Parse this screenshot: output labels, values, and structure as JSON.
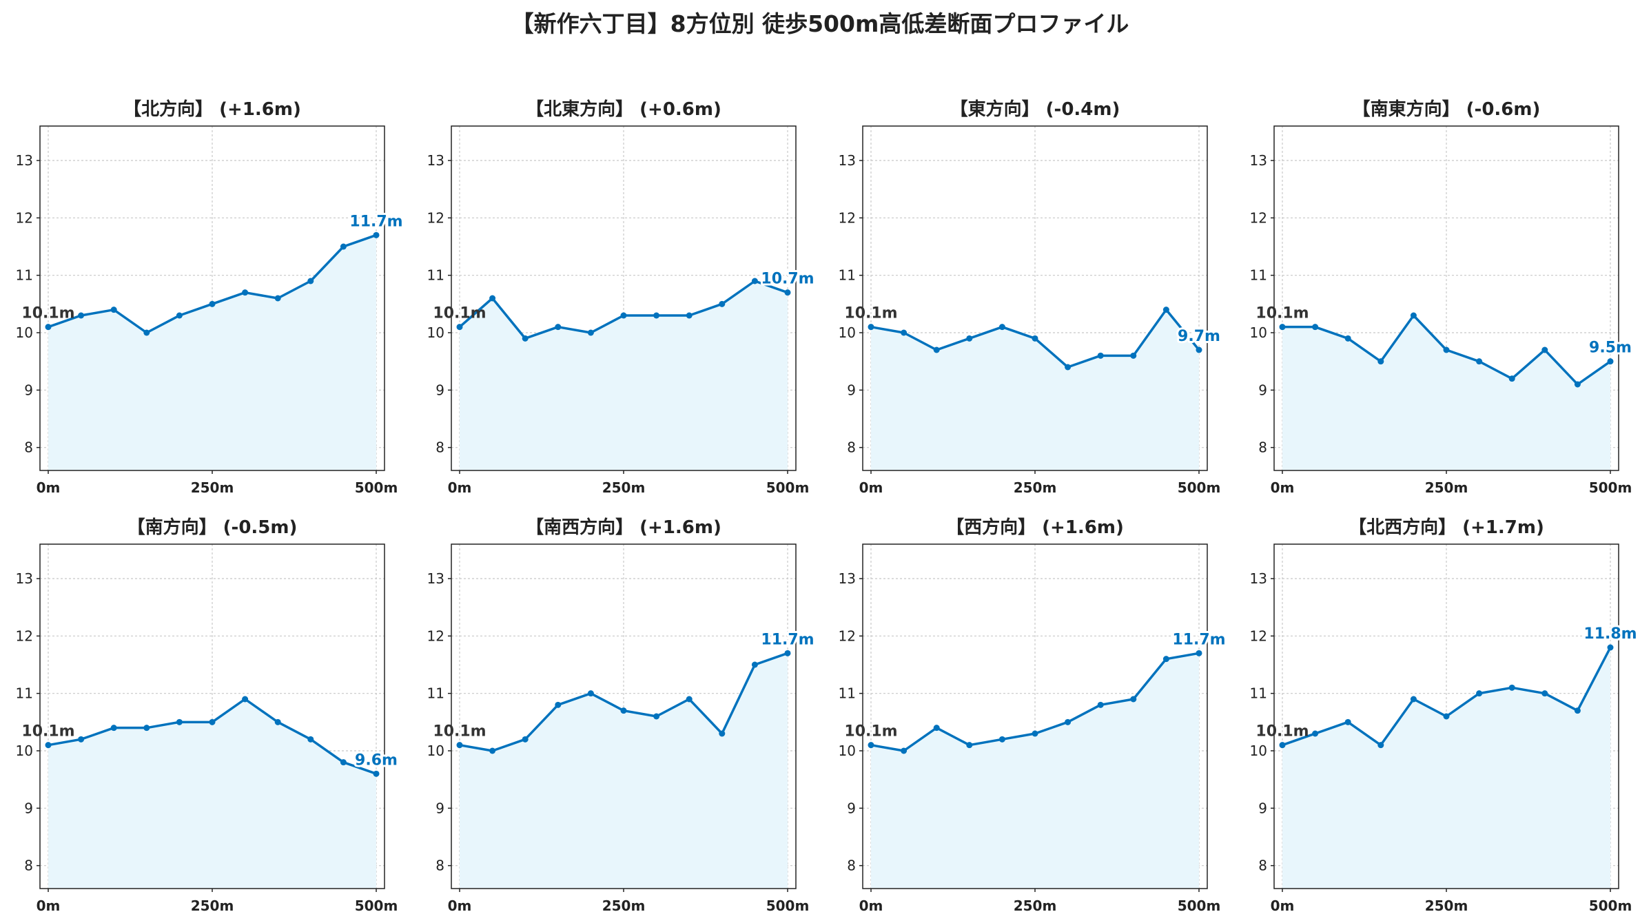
{
  "title": "【新作六丁目】8方位別 徒歩500m高低差断面プロファイル",
  "colors": {
    "line": "#0072bd",
    "fill": "#e8f6fc",
    "grid": "#c8c8c8",
    "axis": "#222222",
    "start_label": "#333333"
  },
  "chart_data": [
    {
      "type": "line",
      "title": "【北方向】 (+1.6m)",
      "x": [
        0,
        50,
        100,
        150,
        200,
        250,
        300,
        350,
        400,
        450,
        500
      ],
      "y": [
        10.1,
        10.3,
        10.4,
        10.0,
        10.3,
        10.5,
        10.7,
        10.6,
        10.9,
        11.5,
        11.7
      ],
      "start_label": "10.1m",
      "end_label": "11.7m",
      "xlim": [
        0,
        500
      ],
      "ylim": [
        7.6,
        13.6
      ],
      "xticks": [
        "0m",
        "250m",
        "500m"
      ],
      "yticks": [
        8,
        9,
        10,
        11,
        12,
        13
      ],
      "grid": true
    },
    {
      "type": "line",
      "title": "【北東方向】 (+0.6m)",
      "x": [
        0,
        50,
        100,
        150,
        200,
        250,
        300,
        350,
        400,
        450,
        500
      ],
      "y": [
        10.1,
        10.6,
        9.9,
        10.1,
        10.0,
        10.3,
        10.3,
        10.3,
        10.5,
        10.9,
        10.7
      ],
      "start_label": "10.1m",
      "end_label": "10.7m",
      "xlim": [
        0,
        500
      ],
      "ylim": [
        7.6,
        13.6
      ],
      "xticks": [
        "0m",
        "250m",
        "500m"
      ],
      "yticks": [
        8,
        9,
        10,
        11,
        12,
        13
      ],
      "grid": true
    },
    {
      "type": "line",
      "title": "【東方向】 (-0.4m)",
      "x": [
        0,
        50,
        100,
        150,
        200,
        250,
        300,
        350,
        400,
        450,
        500
      ],
      "y": [
        10.1,
        10.0,
        9.7,
        9.9,
        10.1,
        9.9,
        9.4,
        9.6,
        9.6,
        10.4,
        9.7
      ],
      "start_label": "10.1m",
      "end_label": "9.7m",
      "xlim": [
        0,
        500
      ],
      "ylim": [
        7.6,
        13.6
      ],
      "xticks": [
        "0m",
        "250m",
        "500m"
      ],
      "yticks": [
        8,
        9,
        10,
        11,
        12,
        13
      ],
      "grid": true
    },
    {
      "type": "line",
      "title": "【南東方向】 (-0.6m)",
      "x": [
        0,
        50,
        100,
        150,
        200,
        250,
        300,
        350,
        400,
        450,
        500
      ],
      "y": [
        10.1,
        10.1,
        9.9,
        9.5,
        10.3,
        9.7,
        9.5,
        9.2,
        9.7,
        9.1,
        9.5
      ],
      "start_label": "10.1m",
      "end_label": "9.5m",
      "xlim": [
        0,
        500
      ],
      "ylim": [
        7.6,
        13.6
      ],
      "xticks": [
        "0m",
        "250m",
        "500m"
      ],
      "yticks": [
        8,
        9,
        10,
        11,
        12,
        13
      ],
      "grid": true
    },
    {
      "type": "line",
      "title": "【南方向】 (-0.5m)",
      "x": [
        0,
        50,
        100,
        150,
        200,
        250,
        300,
        350,
        400,
        450,
        500
      ],
      "y": [
        10.1,
        10.2,
        10.4,
        10.4,
        10.5,
        10.5,
        10.9,
        10.5,
        10.2,
        9.8,
        9.6
      ],
      "start_label": "10.1m",
      "end_label": "9.6m",
      "xlim": [
        0,
        500
      ],
      "ylim": [
        7.6,
        13.6
      ],
      "xticks": [
        "0m",
        "250m",
        "500m"
      ],
      "yticks": [
        8,
        9,
        10,
        11,
        12,
        13
      ],
      "grid": true
    },
    {
      "type": "line",
      "title": "【南西方向】 (+1.6m)",
      "x": [
        0,
        50,
        100,
        150,
        200,
        250,
        300,
        350,
        400,
        450,
        500
      ],
      "y": [
        10.1,
        10.0,
        10.2,
        10.8,
        11.0,
        10.7,
        10.6,
        10.9,
        10.3,
        11.5,
        11.7
      ],
      "start_label": "10.1m",
      "end_label": "11.7m",
      "xlim": [
        0,
        500
      ],
      "ylim": [
        7.6,
        13.6
      ],
      "xticks": [
        "0m",
        "250m",
        "500m"
      ],
      "yticks": [
        8,
        9,
        10,
        11,
        12,
        13
      ],
      "grid": true
    },
    {
      "type": "line",
      "title": "【西方向】 (+1.6m)",
      "x": [
        0,
        50,
        100,
        150,
        200,
        250,
        300,
        350,
        400,
        450,
        500
      ],
      "y": [
        10.1,
        10.0,
        10.4,
        10.1,
        10.2,
        10.3,
        10.5,
        10.8,
        10.9,
        11.6,
        11.7
      ],
      "start_label": "10.1m",
      "end_label": "11.7m",
      "xlim": [
        0,
        500
      ],
      "ylim": [
        7.6,
        13.6
      ],
      "xticks": [
        "0m",
        "250m",
        "500m"
      ],
      "yticks": [
        8,
        9,
        10,
        11,
        12,
        13
      ],
      "grid": true
    },
    {
      "type": "line",
      "title": "【北西方向】 (+1.7m)",
      "x": [
        0,
        50,
        100,
        150,
        200,
        250,
        300,
        350,
        400,
        450,
        500
      ],
      "y": [
        10.1,
        10.3,
        10.5,
        10.1,
        10.9,
        10.6,
        11.0,
        11.1,
        11.0,
        10.7,
        11.8
      ],
      "start_label": "10.1m",
      "end_label": "11.8m",
      "xlim": [
        0,
        500
      ],
      "ylim": [
        7.6,
        13.6
      ],
      "xticks": [
        "0m",
        "250m",
        "500m"
      ],
      "yticks": [
        8,
        9,
        10,
        11,
        12,
        13
      ],
      "grid": true
    }
  ]
}
